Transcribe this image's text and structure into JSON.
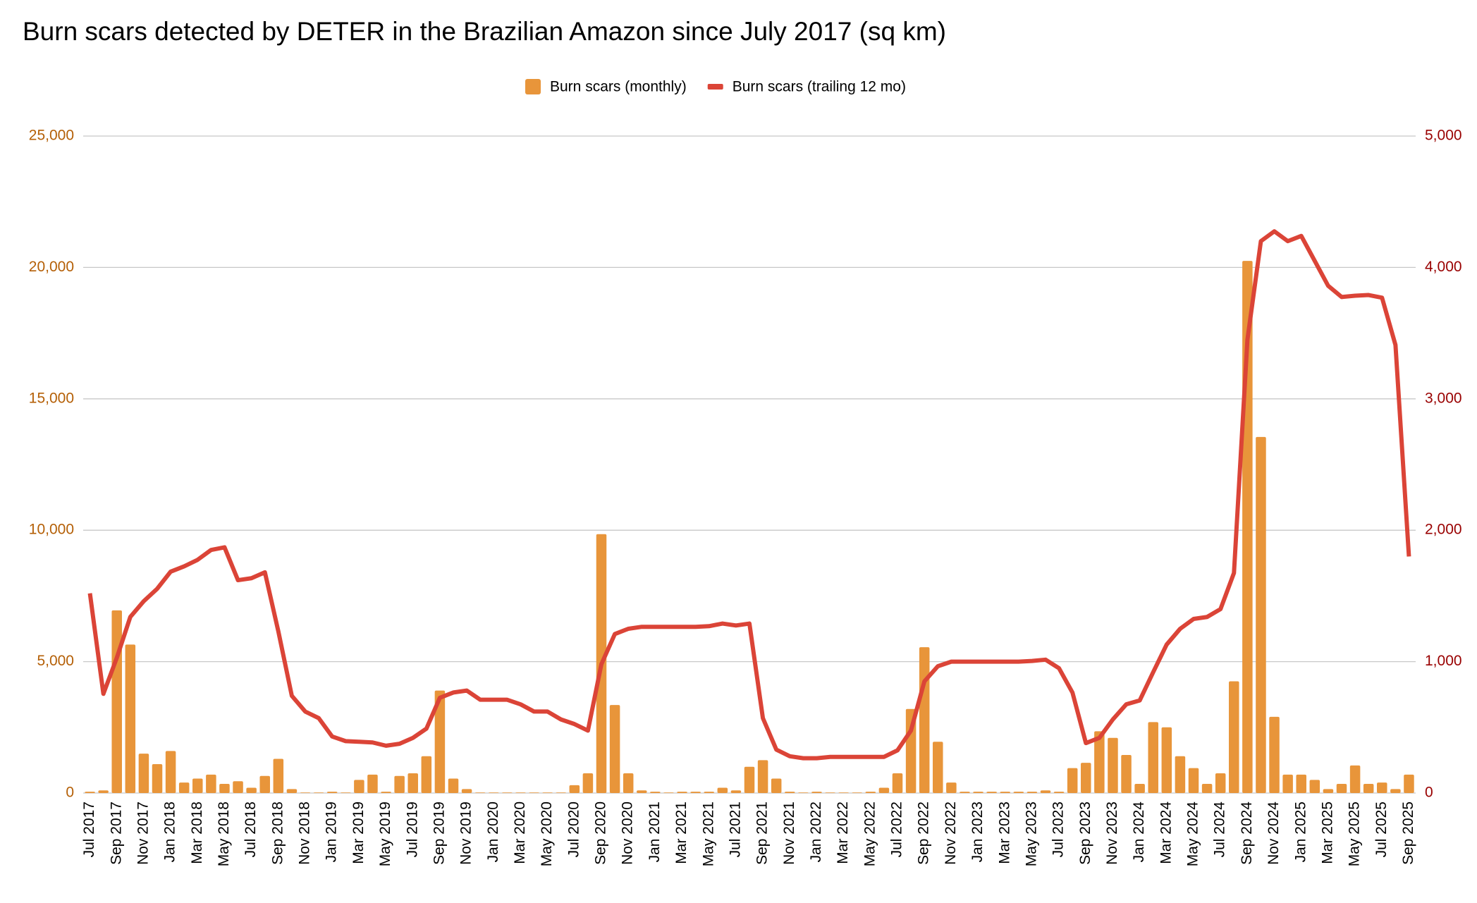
{
  "chart_data": {
    "type": "bar",
    "title": "Burn scars detected by DETER in the Brazilian Amazon since July 2017 (sq km)",
    "categories": [
      "Jul 2017",
      null,
      "Sep 2017",
      null,
      "Nov 2017",
      null,
      "Jan 2018",
      null,
      "Mar 2018",
      null,
      "May 2018",
      null,
      "Jul 2018",
      null,
      "Sep 2018",
      null,
      "Nov 2018",
      null,
      "Jan 2019",
      null,
      "Mar 2019",
      null,
      "May 2019",
      null,
      "Jul 2019",
      null,
      "Sep 2019",
      null,
      "Nov 2019",
      null,
      "Jan 2020",
      null,
      "Mar 2020",
      null,
      "May 2020",
      null,
      "Jul 2020",
      null,
      "Sep 2020",
      null,
      "Nov 2020",
      null,
      "Jan 2021",
      null,
      "Mar 2021",
      null,
      "May 2021",
      null,
      "Jul 2021",
      null,
      "Sep 2021",
      null,
      "Nov 2021",
      null,
      "Jan 2022",
      null,
      "Mar 2022",
      null,
      "May 2022",
      null,
      "Jul 2022",
      null,
      "Sep 2022",
      null,
      "Nov 2022",
      null,
      "Jan 2023",
      null,
      "Mar 2023",
      null,
      "May 2023",
      null,
      "Jul 2023",
      null,
      "Sep 2023",
      null,
      "Nov 2023",
      null,
      "Jan 2024",
      null,
      "Mar 2024",
      null,
      "May 2024",
      null,
      "Jul 2024",
      null,
      "Sep 2024",
      null,
      "Nov 2024",
      null,
      "Jan 2025",
      null,
      "Mar 2025",
      null,
      "May 2025",
      null,
      "Jul 2025",
      null,
      "Sep 2025"
    ],
    "series": [
      {
        "name": "Burn scars (monthly)",
        "type": "bar",
        "color": "#e8953a",
        "values": [
          50,
          100,
          6950,
          5650,
          1500,
          1100,
          1600,
          400,
          550,
          700,
          350,
          450,
          200,
          650,
          1300,
          150,
          20,
          20,
          50,
          20,
          500,
          700,
          50,
          650,
          750,
          1400,
          3900,
          550,
          150,
          20,
          20,
          20,
          20,
          20,
          20,
          20,
          300,
          750,
          9850,
          3350,
          750,
          100,
          50,
          20,
          50,
          50,
          50,
          200,
          100,
          1000,
          1250,
          550,
          50,
          20,
          50,
          20,
          20,
          20,
          50,
          200,
          750,
          3200,
          5550,
          1950,
          400,
          50,
          50,
          50,
          50,
          50,
          50,
          100,
          50,
          950,
          1150,
          2350,
          2100,
          1450,
          350,
          2700,
          2500,
          1400,
          950,
          350,
          750,
          4250,
          20250,
          13550,
          2900,
          700,
          700,
          500,
          150,
          350,
          1050,
          350,
          400,
          150,
          700
        ]
      },
      {
        "name": "Burn scars (trailing 12 mo)",
        "type": "line",
        "axis": "y2",
        "color": "#db4437",
        "values": [
          1520,
          755,
          1030,
          1340,
          1460,
          1555,
          1685,
          1725,
          1775,
          1850,
          1870,
          1620,
          1635,
          1680,
          1230,
          740,
          620,
          570,
          430,
          395,
          390,
          385,
          360,
          375,
          420,
          490,
          725,
          765,
          780,
          710,
          710,
          710,
          675,
          620,
          620,
          560,
          525,
          475,
          980,
          1210,
          1250,
          1265,
          1265,
          1265,
          1265,
          1265,
          1270,
          1290,
          1275,
          1290,
          570,
          330,
          280,
          265,
          265,
          275,
          275,
          275,
          275,
          275,
          325,
          475,
          850,
          965,
          1000,
          1000,
          1000,
          1000,
          1000,
          1000,
          1005,
          1015,
          950,
          765,
          380,
          420,
          560,
          675,
          705,
          920,
          1130,
          1250,
          1325,
          1340,
          1400,
          1675,
          3450,
          4200,
          4275,
          4200,
          4240,
          4050,
          3860,
          3775,
          3785,
          3790,
          3770,
          3410,
          1800
        ]
      }
    ],
    "ylim": [
      0,
      25000
    ],
    "yticks": [
      0,
      {
        "value": 5000,
        "label": "5,000"
      },
      {
        "value": 10000,
        "label": "10,000"
      },
      {
        "value": 15000,
        "label": "15,000"
      },
      {
        "value": 20000,
        "label": "20,000"
      },
      {
        "value": 25000,
        "label": "25,000"
      }
    ],
    "y2lim": [
      0,
      5000
    ],
    "y2ticks": [
      0,
      {
        "value": 1000,
        "label": "1,000"
      },
      {
        "value": 2000,
        "label": "2,000"
      },
      {
        "value": 3000,
        "label": "3,000"
      },
      {
        "value": 4000,
        "label": "4,000"
      },
      {
        "value": 5000,
        "label": "5,000"
      }
    ],
    "grid": true,
    "legend": "top"
  }
}
